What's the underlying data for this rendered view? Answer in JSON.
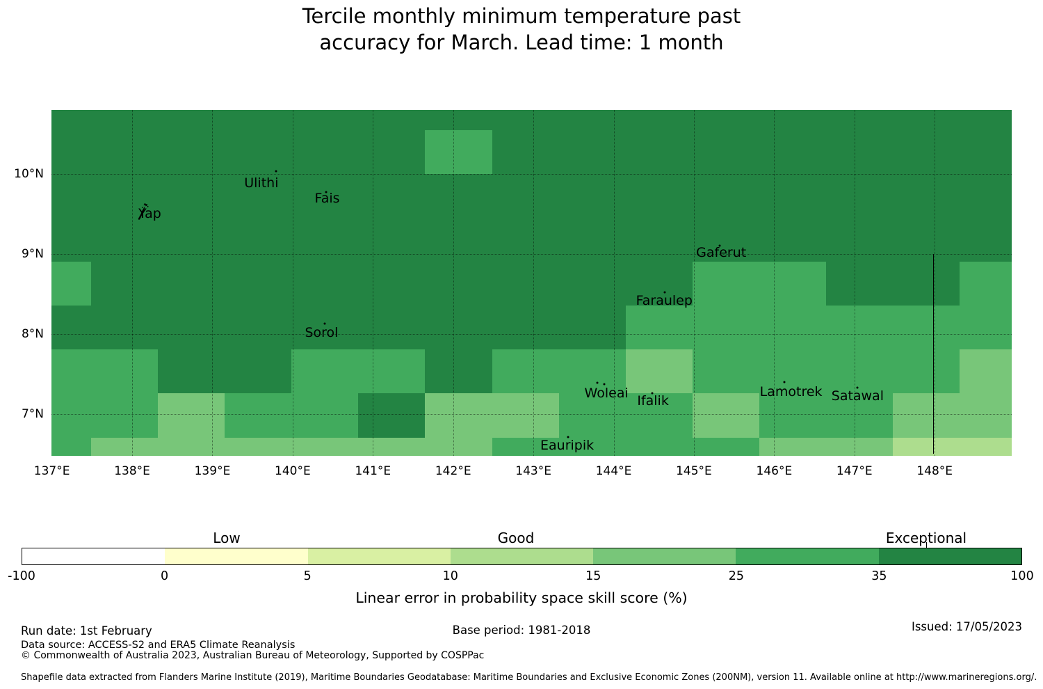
{
  "title": {
    "line1": "Tercile monthly minimum temperature past",
    "line2": "accuracy for March. Lead time: 1 month"
  },
  "chart_data": {
    "type": "heatmap",
    "title": "Tercile monthly minimum temperature past accuracy for March. Lead time: 1 month",
    "projection": "lon/lat (°E, °N)",
    "lon_range": [
      136.99,
      148.96
    ],
    "lat_range": [
      6.48,
      10.8
    ],
    "x_ticks": [
      {
        "label": "137°E",
        "lon": 137
      },
      {
        "label": "138°E",
        "lon": 138
      },
      {
        "label": "139°E",
        "lon": 139
      },
      {
        "label": "140°E",
        "lon": 140
      },
      {
        "label": "141°E",
        "lon": 141
      },
      {
        "label": "142°E",
        "lon": 142
      },
      {
        "label": "143°E",
        "lon": 143
      },
      {
        "label": "144°E",
        "lon": 144
      },
      {
        "label": "145°E",
        "lon": 145
      },
      {
        "label": "146°E",
        "lon": 146
      },
      {
        "label": "147°E",
        "lon": 147
      },
      {
        "label": "148°E",
        "lon": 148
      }
    ],
    "y_ticks": [
      {
        "label": "10°N",
        "lat": 10
      },
      {
        "label": "9°N",
        "lat": 9
      },
      {
        "label": "8°N",
        "lat": 8
      },
      {
        "label": "7°N",
        "lat": 7
      }
    ],
    "grid_lons": [
      138,
      139,
      140,
      141,
      142,
      143,
      144,
      145,
      146,
      147,
      148
    ],
    "grid_lats": [
      10,
      9,
      8,
      7
    ],
    "col_edges_lon": [
      136.99,
      137.488,
      138.321,
      139.153,
      139.986,
      140.818,
      141.651,
      142.484,
      143.316,
      144.149,
      144.981,
      145.814,
      146.647,
      147.479,
      148.312,
      148.96
    ],
    "row_edges_lat": [
      10.8,
      10.549,
      10.0,
      9.451,
      8.902,
      8.353,
      7.804,
      7.255,
      6.706,
      6.48
    ],
    "grid_codes": [
      "DDDDDDDDDDDDDDD",
      "DDDDDDMDDDDDDDD",
      "DDDDDDDDDDDDDDD",
      "DDDDDDDDDDDDDDD",
      "MDDDDDDDDDMMDDM",
      "DDDDDDDDDMMMMMM",
      "MMDDMMDMMLMMMML",
      "MMLMMDLLMMLMMLL",
      "MLLLLLLMMMMLLPP"
    ],
    "palette": {
      "D": "#238443",
      "M": "#41ab5d",
      "L": "#78c679",
      "P": "#addd8e"
    },
    "code_value_ranges": {
      "D": "35-100",
      "M": "25-35",
      "L": "15-25",
      "P": "10-15"
    },
    "places": [
      {
        "name": "Yap",
        "lon": 138.22,
        "lat": 9.5
      },
      {
        "name": "Ulithi",
        "lon": 139.61,
        "lat": 9.89
      },
      {
        "name": "Fais",
        "lon": 140.43,
        "lat": 9.695
      },
      {
        "name": "Sorol",
        "lon": 140.36,
        "lat": 8.02
      },
      {
        "name": "Gaferut",
        "lon": 145.34,
        "lat": 9.02
      },
      {
        "name": "Faraulep",
        "lon": 144.63,
        "lat": 8.418
      },
      {
        "name": "Woleai",
        "lon": 143.91,
        "lat": 7.26
      },
      {
        "name": "Ifalik",
        "lon": 144.49,
        "lat": 7.16
      },
      {
        "name": "Eauripik",
        "lon": 143.42,
        "lat": 6.61
      },
      {
        "name": "Lamotrek",
        "lon": 146.21,
        "lat": 7.28
      },
      {
        "name": "Satawal",
        "lon": 147.04,
        "lat": 7.22
      }
    ],
    "island_dots": [
      {
        "lon": 139.79,
        "lat": 10.035
      },
      {
        "lon": 140.42,
        "lat": 9.77
      },
      {
        "lon": 140.4,
        "lat": 8.13
      },
      {
        "lon": 145.32,
        "lat": 9.1
      },
      {
        "lon": 144.64,
        "lat": 8.52
      },
      {
        "lon": 143.8,
        "lat": 7.39
      },
      {
        "lon": 143.88,
        "lat": 7.37
      },
      {
        "lon": 144.48,
        "lat": 7.26
      },
      {
        "lon": 143.43,
        "lat": 6.71
      },
      {
        "lon": 146.13,
        "lat": 7.4
      },
      {
        "lon": 147.04,
        "lat": 7.33
      }
    ],
    "eez_boundary_line": {
      "lon": 147.98,
      "lat_top": 9.0,
      "lat_bottom": 6.505
    },
    "colorbar": {
      "bounds": [
        -100,
        0,
        5,
        10,
        15,
        25,
        35,
        100
      ],
      "colors": [
        "#ffffff",
        "#ffffcc",
        "#d9f0a3",
        "#addd8e",
        "#78c679",
        "#41ab5d",
        "#238443"
      ],
      "categories": [
        "Low",
        "Good",
        "Exceptional"
      ],
      "label": "Linear error in probability space skill score (%)"
    }
  },
  "colorbar": {
    "tick_labels": [
      "-100",
      "0",
      "5",
      "10",
      "15",
      "25",
      "35",
      "100"
    ],
    "category_labels": [
      "Low",
      "Good",
      "Exceptional"
    ],
    "axis_label": "Linear error in probability space skill score (%)"
  },
  "footer": {
    "run_date": "Run date: 1st February",
    "base_period": "Base period: 1981-2018",
    "issued": "Issued: 17/05/2023",
    "data_source": "Data source: ACCESS-S2 and ERA5 Climate Reanalysis",
    "copyright": "© Commonwealth of Australia 2023, Australian Bureau of Meteorology, Supported by COSPPac",
    "shapefile_note": "Shapefile data extracted from Flanders Marine Institute (2019), Maritime Boundaries Geodatabase: Maritime Boundaries and Exclusive Economic Zones (200NM), version 11. Available online at http://www.marineregions.org/."
  }
}
